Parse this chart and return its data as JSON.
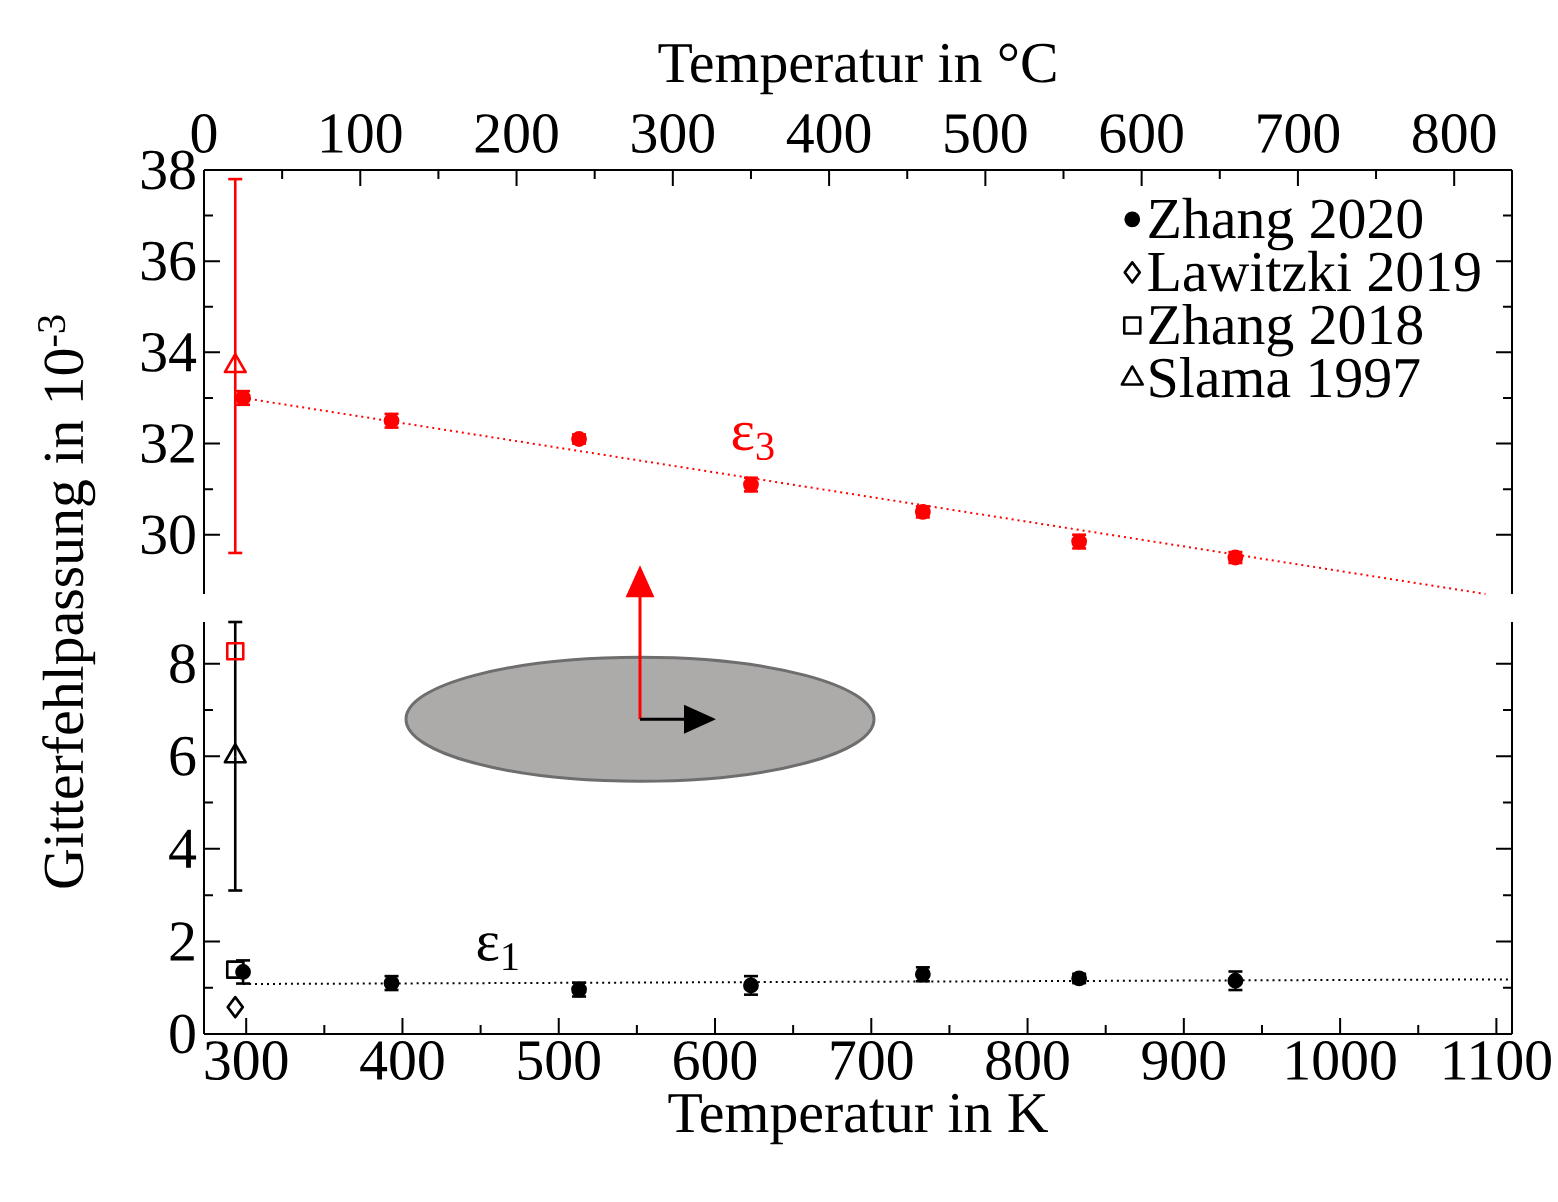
{
  "chart_data": [
    {
      "type": "scatter",
      "x2label": "Temperatur in °C",
      "xlim": [
        273,
        1110
      ],
      "x2lim": [
        0,
        837
      ],
      "x2ticks": [
        0,
        100,
        200,
        300,
        400,
        500,
        600,
        700,
        800
      ],
      "ylim": [
        28.7,
        38
      ],
      "yticks": [
        30,
        32,
        34,
        36,
        38
      ],
      "tick_labels": "y",
      "annotations": [
        "ε$_{3}$"
      ],
      "series": [
        {
          "color": "#ff0000",
          "marker": "circle",
          "x": [
            298,
            393,
            513,
            623,
            733,
            833,
            933
          ],
          "values": [
            33.0,
            32.5,
            32.1,
            31.1,
            30.5,
            29.85,
            29.5
          ],
          "errors": [
            0.15,
            0.15,
            0.1,
            0.15,
            0.12,
            0.15,
            0.12
          ]
        },
        {
          "color": "#ff0000",
          "marker": "triangle",
          "x": [
            293
          ],
          "values": [
            33.7
          ],
          "errors": [
            4.1
          ]
        },
        {
          "type": "line",
          "color": "#ff0000",
          "marker": "none",
          "line_style": "dotted",
          "x": [
            298,
            1093
          ],
          "values": [
            33.0,
            28.7
          ]
        }
      ]
    },
    {
      "type": "scatter",
      "xlabel": "Temperatur in K",
      "ylabel": "Gitterfehlpassung in 10$^{-3}$",
      "xlim": [
        273,
        1110
      ],
      "xticks": [
        300,
        400,
        500,
        600,
        700,
        800,
        900,
        1000,
        1100
      ],
      "ylim": [
        0,
        8.9
      ],
      "yticks": [
        0,
        2,
        4,
        6,
        8
      ],
      "legend": "top right",
      "annotations": [
        "ε$_{1}$"
      ],
      "series": [
        {
          "name": "Zhang 2020",
          "color": "#000000",
          "marker": "circle",
          "x": [
            298,
            393,
            513,
            623,
            733,
            833,
            933
          ],
          "values": [
            1.34,
            1.1,
            0.96,
            1.05,
            1.29,
            1.2,
            1.15
          ],
          "errors": [
            0.25,
            0.15,
            0.15,
            0.2,
            0.15,
            0.1,
            0.2
          ]
        },
        {
          "name": "Lawitzki 2019",
          "color": "#000000",
          "marker": "diamond",
          "x": [
            293
          ],
          "values": [
            0.58
          ]
        },
        {
          "name": "Zhang 2018",
          "color": "#000000",
          "marker": "square",
          "x": [
            293
          ],
          "values": [
            1.39
          ]
        },
        {
          "name": "Slama 1997",
          "color": "#000000",
          "marker": "triangle",
          "x": [
            293
          ],
          "values": [
            6.0
          ],
          "errors": [
            2.9
          ]
        },
        {
          "color": "#ff0000",
          "marker": "square",
          "x": [
            293
          ],
          "values": [
            8.27
          ]
        },
        {
          "type": "line",
          "color": "#000000",
          "marker": "none",
          "line_style": "dotted",
          "x": [
            298,
            1110
          ],
          "values": [
            1.08,
            1.18
          ]
        }
      ]
    }
  ]
}
